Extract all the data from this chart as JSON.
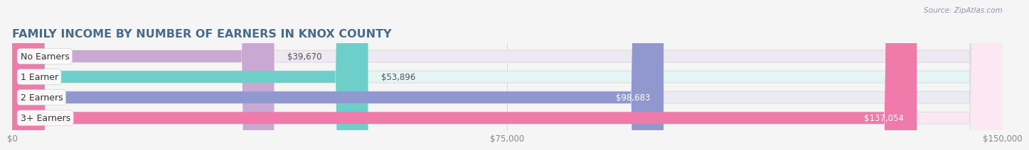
{
  "title": "FAMILY INCOME BY NUMBER OF EARNERS IN KNOX COUNTY",
  "source": "Source: ZipAtlas.com",
  "categories": [
    "No Earners",
    "1 Earner",
    "2 Earners",
    "3+ Earners"
  ],
  "values": [
    39670,
    53896,
    98683,
    137054
  ],
  "bar_colors": [
    "#c9a8d4",
    "#6ecfca",
    "#9198d0",
    "#f07aaa"
  ],
  "bar_bg_colors": [
    "#ede8f2",
    "#e5f5f4",
    "#eaebf5",
    "#fce8f2"
  ],
  "value_label_colors": [
    "#555555",
    "#555555",
    "#ffffff",
    "#ffffff"
  ],
  "xlim": [
    0,
    150000
  ],
  "xtick_labels": [
    "$0",
    "$75,000",
    "$150,000"
  ],
  "xtick_values": [
    0,
    75000,
    150000
  ],
  "title_color": "#4a6a8a",
  "title_fontsize": 11.5,
  "source_color": "#8899aa",
  "bar_height": 0.58,
  "background_color": "#f5f5f5",
  "track_color": "#e8e8e8",
  "cat_label_fontsize": 9,
  "val_label_fontsize": 8.5
}
